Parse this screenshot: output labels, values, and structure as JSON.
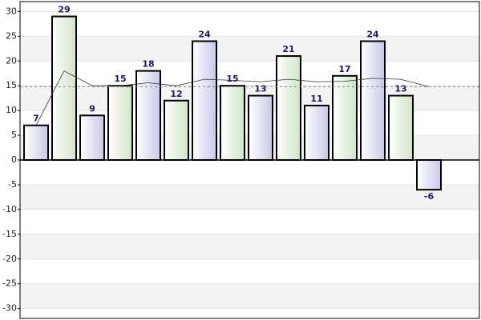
{
  "chart_data": {
    "type": "bar",
    "categories": [
      null,
      null,
      null,
      null,
      null,
      null,
      null,
      null,
      null,
      null,
      null,
      null,
      null,
      null,
      null
    ],
    "series": [
      {
        "color": [
          "#d8d8f0",
          "#d9ead3"
        ],
        "values": [
          7,
          29,
          9,
          15,
          18,
          12,
          24,
          15,
          13,
          21,
          11,
          17,
          24,
          13,
          -6
        ]
      },
      {
        "type": "line",
        "color": "#333333",
        "values": [
          7,
          18,
          15,
          15,
          15.6,
          15,
          16.3,
          16.1,
          15.8,
          16.3,
          15.8,
          15.9,
          16.5,
          16.3,
          14.8
        ]
      }
    ],
    "average_line": 14.8,
    "ylim": [
      -32,
      32
    ],
    "yticks": [
      -30,
      -25,
      -20,
      -15,
      -10,
      -5,
      0,
      5,
      10,
      15,
      20,
      25,
      30
    ],
    "grid": true
  }
}
